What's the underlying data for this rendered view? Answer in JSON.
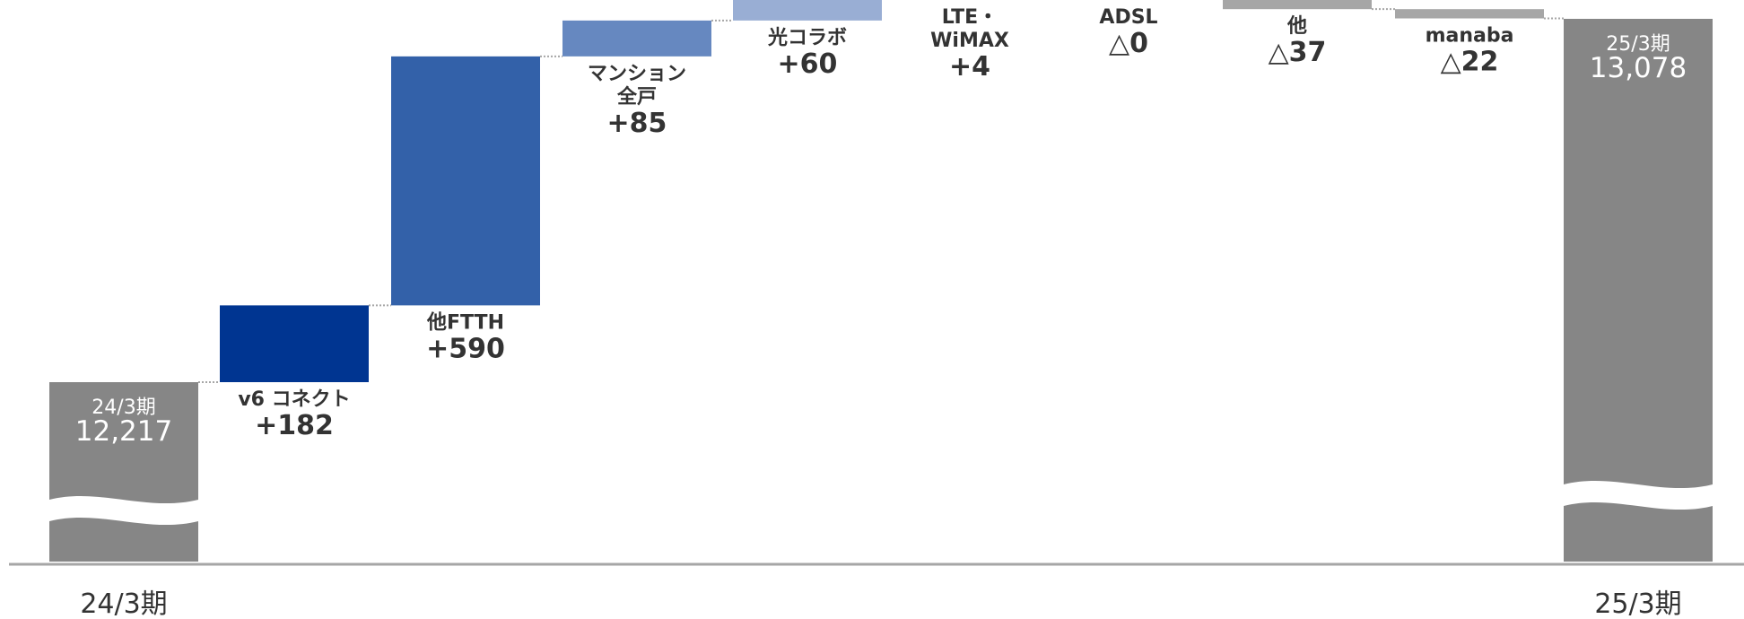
{
  "chart_data": {
    "type": "waterfall",
    "title": "",
    "xlabel": "",
    "ylabel": "",
    "axis_break": true,
    "ylim": [
      12050,
      13100
    ],
    "start": {
      "label": "24/3期",
      "value": 12217,
      "value_text": "12,217"
    },
    "end": {
      "label": "25/3期",
      "value": 13078,
      "value_text": "13,078"
    },
    "steps": [
      {
        "label_lines": [
          "v6 コネクト"
        ],
        "delta": 182,
        "delta_text": "+182",
        "color": "#003591"
      },
      {
        "label_lines": [
          "他FTTH"
        ],
        "delta": 590,
        "delta_text": "+590",
        "color": "#3361A9"
      },
      {
        "label_lines": [
          "マンション",
          "全戸"
        ],
        "delta": 85,
        "delta_text": "+85",
        "color": "#6688C0"
      },
      {
        "label_lines": [
          "光コラボ"
        ],
        "delta": 60,
        "delta_text": "+60",
        "color": "#99AED4"
      },
      {
        "label_lines": [
          "LTE・",
          "WiMAX"
        ],
        "delta": 4,
        "delta_text": "+4",
        "color": "#99AED4"
      },
      {
        "label_lines": [
          "ADSL"
        ],
        "delta": 0,
        "delta_text": "△0",
        "color": "#A6A6A6"
      },
      {
        "label_lines": [
          "他"
        ],
        "delta": -37,
        "delta_text": "△37",
        "color": "#A6A6A6"
      },
      {
        "label_lines": [
          "manaba"
        ],
        "delta": -22,
        "delta_text": "△22",
        "color": "#A6A6A6"
      }
    ],
    "x_ticks": [
      "24/3期",
      "25/3期"
    ],
    "colors": {
      "total": "#868686",
      "baseline": "#A6A6A6",
      "connector": "#A6A6A6"
    }
  }
}
